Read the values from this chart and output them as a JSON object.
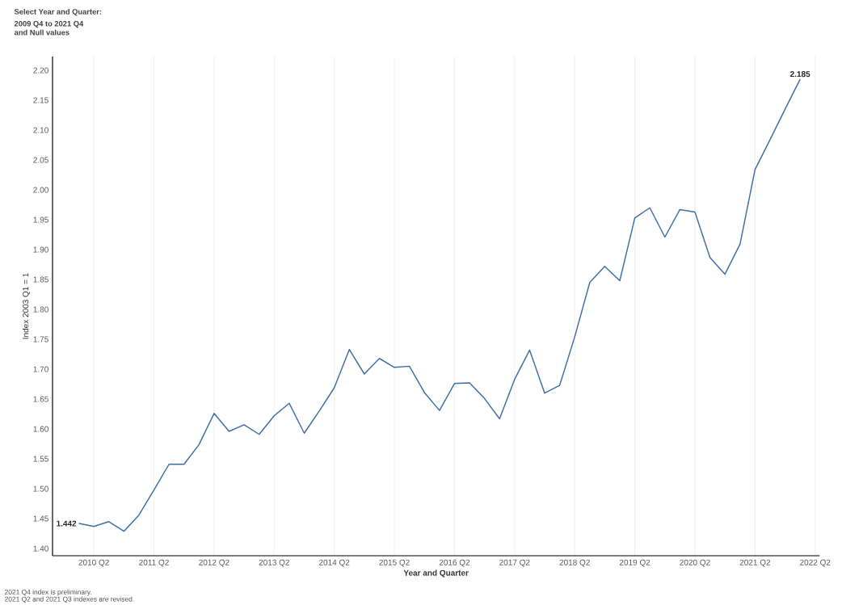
{
  "chart_data": {
    "type": "line",
    "title": "Select Year and Quarter:",
    "subtitle": "2009 Q4 to 2021 Q4 and Null values",
    "xlabel": "Year and Quarter",
    "ylabel": "Index 2003 Q1 = 1",
    "categories": [
      null,
      "2010 Q2",
      null,
      null,
      null,
      "2011 Q2",
      null,
      null,
      null,
      "2012 Q2",
      null,
      null,
      null,
      "2013 Q2",
      null,
      null,
      null,
      "2014 Q2",
      null,
      null,
      null,
      "2015 Q2",
      null,
      null,
      null,
      "2016 Q2",
      null,
      null,
      null,
      "2017 Q2",
      null,
      null,
      null,
      "2018 Q2",
      null,
      null,
      null,
      "2019 Q2",
      null,
      null,
      null,
      "2020 Q2",
      null,
      null,
      null,
      "2021 Q2",
      null,
      null,
      null,
      "2022 Q2"
    ],
    "series": [
      {
        "color": "#3f6ea6",
        "values": [
          1.442,
          1.437,
          1.445,
          1.429,
          1.456,
          1.498,
          1.541,
          1.541,
          1.574,
          1.626,
          1.596,
          1.607,
          1.591,
          1.622,
          1.643,
          1.593,
          1.63,
          1.669,
          1.733,
          1.692,
          1.718,
          1.703,
          1.705,
          1.661,
          1.631,
          1.676,
          1.677,
          1.651,
          1.617,
          1.683,
          1.732,
          1.66,
          1.673,
          1.754,
          1.845,
          1.872,
          1.848,
          1.953,
          1.97,
          1.921,
          1.967,
          1.963,
          1.887,
          1.859,
          1.909,
          2.034,
          2.084,
          2.135,
          2.185,
          null
        ],
        "value_labels": [
          "1.442",
          null,
          null,
          null,
          null,
          null,
          null,
          null,
          null,
          null,
          null,
          null,
          null,
          null,
          null,
          null,
          null,
          null,
          null,
          null,
          null,
          null,
          null,
          null,
          null,
          null,
          null,
          null,
          null,
          null,
          null,
          null,
          null,
          null,
          null,
          null,
          null,
          null,
          null,
          null,
          null,
          null,
          null,
          null,
          null,
          null,
          null,
          null,
          "2.185",
          null
        ]
      }
    ],
    "ylim": [
      1.388,
      2.223
    ],
    "yticks": [
      {
        "value": 1.4,
        "label": "1.40"
      },
      {
        "value": 1.45,
        "label": "1.45"
      },
      {
        "value": 1.5,
        "label": "1.50"
      },
      {
        "value": 1.55,
        "label": "1.55"
      },
      {
        "value": 1.6,
        "label": "1.60"
      },
      {
        "value": 1.65,
        "label": "1.65"
      },
      {
        "value": 1.7,
        "label": "1.70"
      },
      {
        "value": 1.75,
        "label": "1.75"
      },
      {
        "value": 1.8,
        "label": "1.80"
      },
      {
        "value": 1.85,
        "label": "1.85"
      },
      {
        "value": 1.9,
        "label": "1.90"
      },
      {
        "value": 1.95,
        "label": "1.95"
      },
      {
        "value": 2.0,
        "label": "2.00"
      },
      {
        "value": 2.05,
        "label": "2.05"
      },
      {
        "value": 2.1,
        "label": "2.10"
      },
      {
        "value": 2.15,
        "label": "2.15"
      },
      {
        "value": 2.2,
        "label": "2.20"
      }
    ],
    "grid": "x",
    "marker": "none",
    "line_style": "solid",
    "legend": false,
    "annotations": [
      "2021 Q4 index is preliminary.",
      "2021 Q2 and 2021 Q3 indexes are revised."
    ]
  }
}
